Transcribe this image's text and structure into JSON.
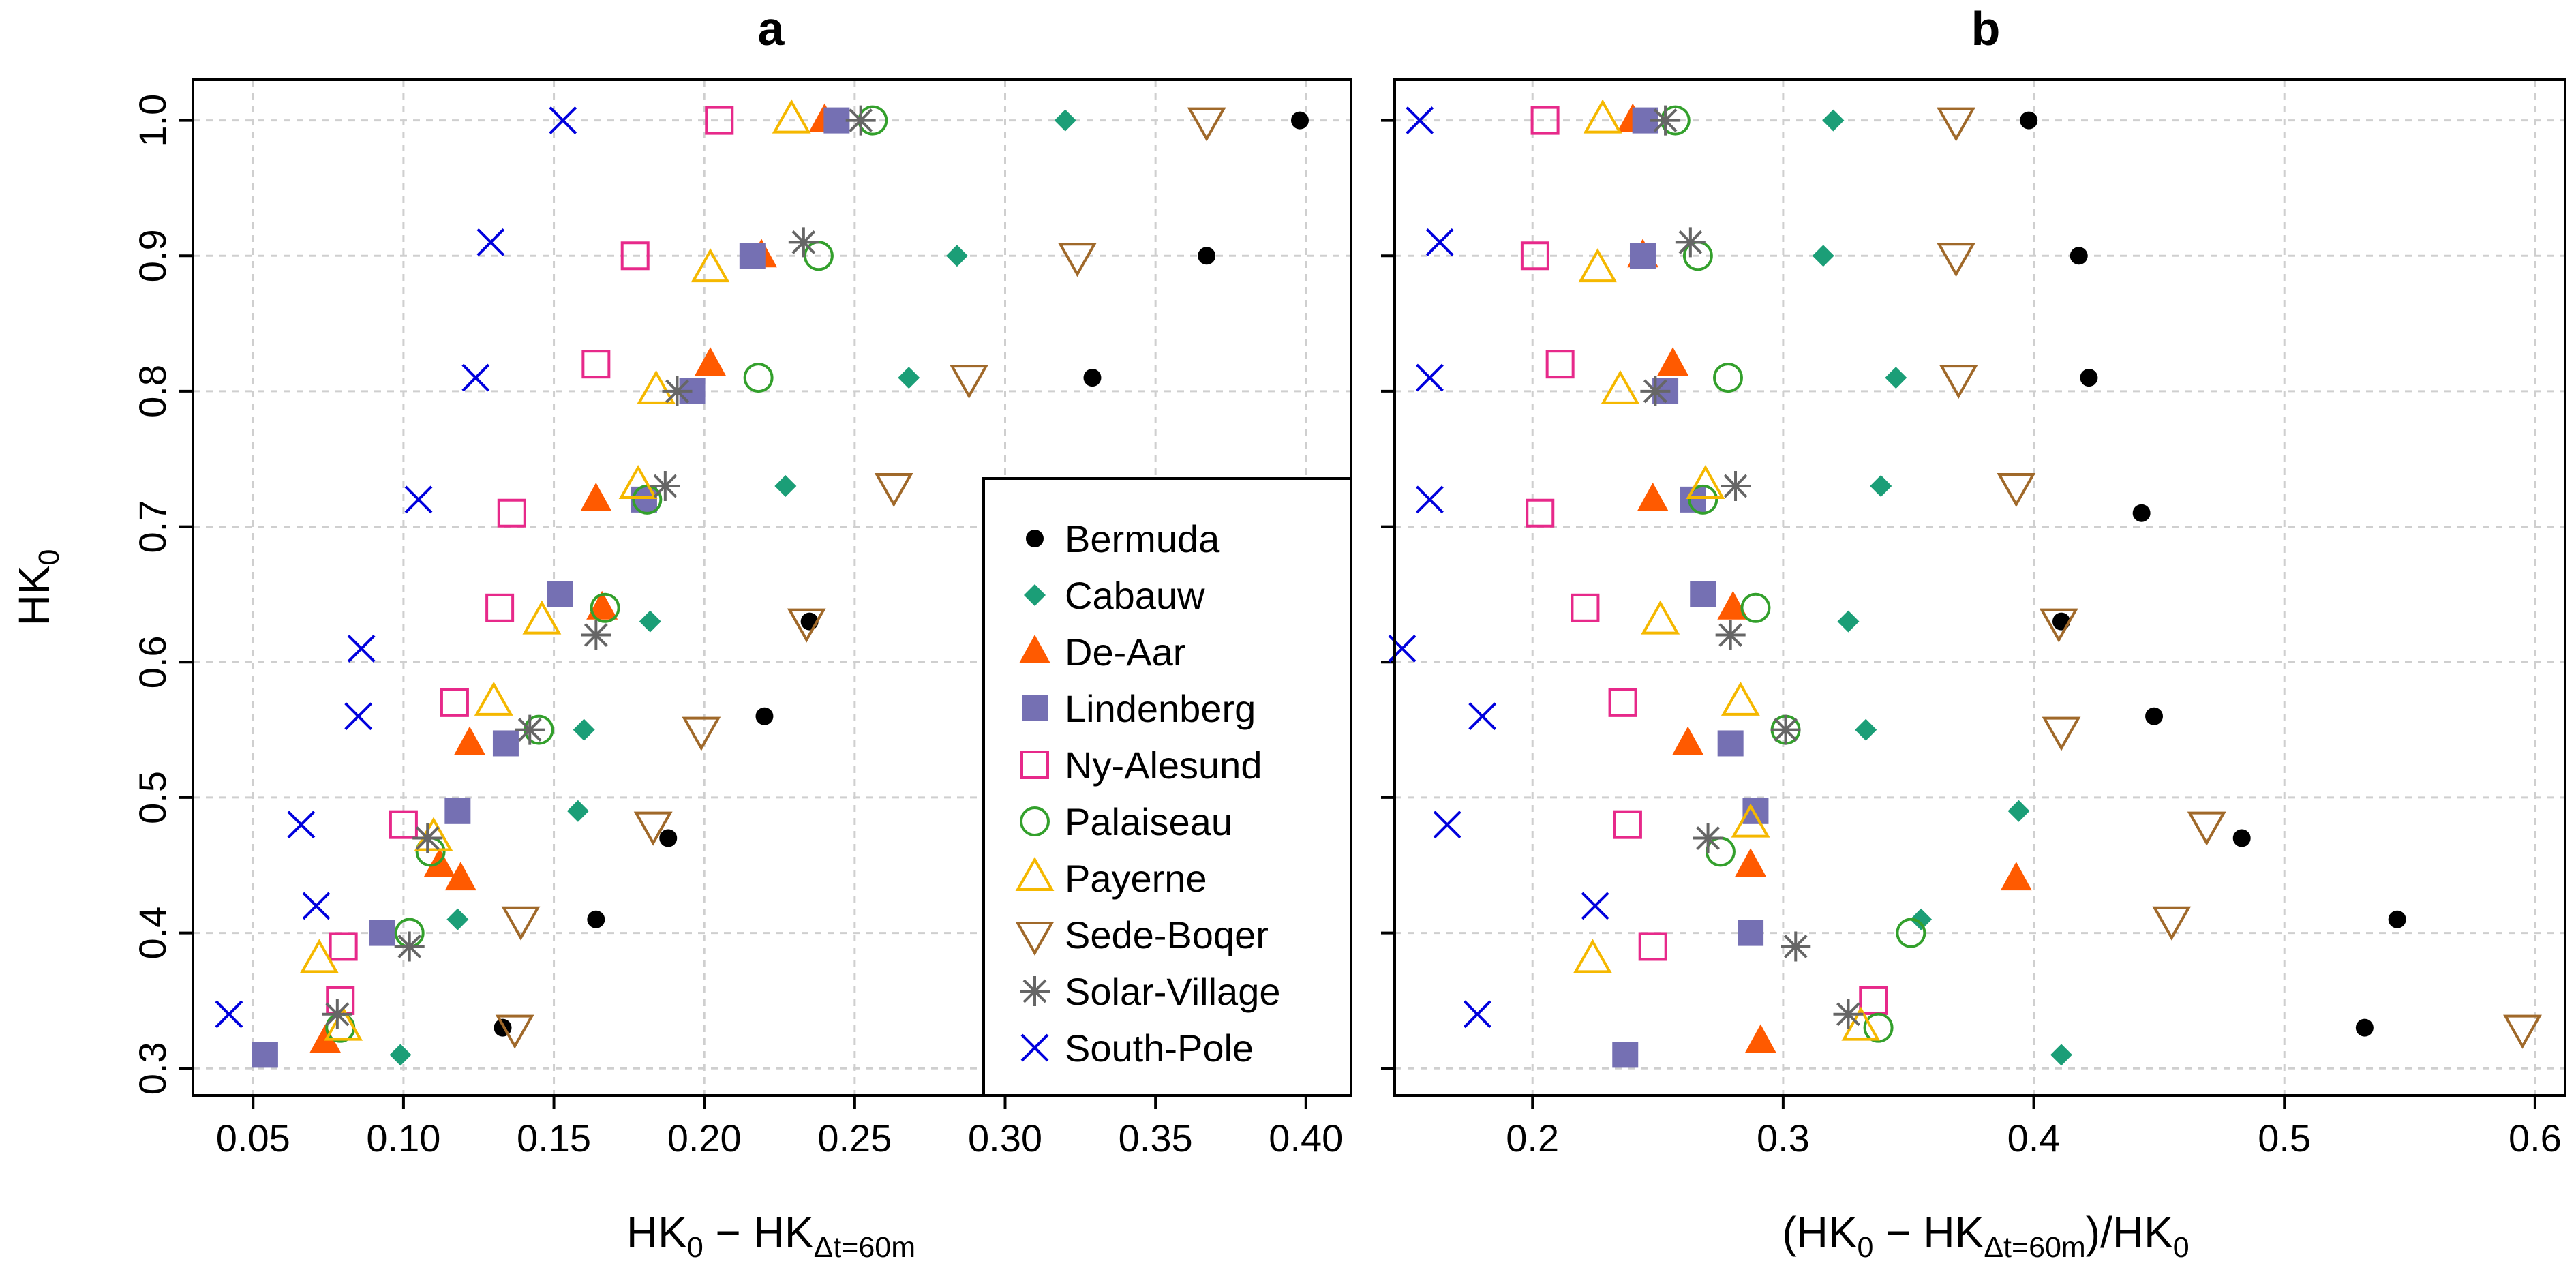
{
  "stations": [
    {
      "name": "Bermuda",
      "color": "#000000",
      "marker": "dot"
    },
    {
      "name": "Cabauw",
      "color": "#1b9e77",
      "marker": "diamond"
    },
    {
      "name": "De-Aar",
      "color": "#ff5a00",
      "marker": "triangle-filled"
    },
    {
      "name": "Lindenberg",
      "color": "#7570b3",
      "marker": "square-filled"
    },
    {
      "name": "Ny-Alesund",
      "color": "#e7298a",
      "marker": "square-open"
    },
    {
      "name": "Palaiseau",
      "color": "#33a02c",
      "marker": "circle-open"
    },
    {
      "name": "Payerne",
      "color": "#f5b800",
      "marker": "triangle-open"
    },
    {
      "name": "Sede-Boqer",
      "color": "#a0692a",
      "marker": "triangle-down-open"
    },
    {
      "name": "Solar-Village",
      "color": "#666666",
      "marker": "asterisk"
    },
    {
      "name": "South-Pole",
      "color": "#0000dd",
      "marker": "cross"
    }
  ],
  "chart_data": [
    {
      "type": "scatter",
      "panel": "a",
      "title": "a",
      "xlabel_main": "HK",
      "xlabel_sub0": "0",
      "xlabel_mid": " − HK",
      "xlabel_sub1": "Δt=60m",
      "ylabel": "HK",
      "ylabel_sub": "0",
      "xlim": [
        0.03,
        0.415
      ],
      "ylim": [
        0.28,
        1.03
      ],
      "xticks": [
        0.05,
        0.1,
        0.15,
        0.2,
        0.25,
        0.3,
        0.35,
        0.4
      ],
      "xtick_labels": [
        "0.05",
        "0.10",
        "0.15",
        "0.20",
        "0.25",
        "0.30",
        "0.35",
        "0.40"
      ],
      "yticks": [
        0.3,
        0.4,
        0.5,
        0.6,
        0.7,
        0.8,
        0.9,
        1.0
      ],
      "ytick_labels": [
        "0.3",
        "0.4",
        "0.5",
        "0.6",
        "0.7",
        "0.8",
        "0.9",
        "1.0"
      ],
      "legend_position": "bottom-right",
      "series": [
        {
          "name": "Bermuda",
          "points": [
            [
              0.398,
              1.0
            ],
            [
              0.367,
              0.9
            ],
            [
              0.329,
              0.81
            ],
            [
              0.235,
              0.63
            ],
            [
              0.22,
              0.56
            ],
            [
              0.188,
              0.47
            ],
            [
              0.164,
              0.41
            ],
            [
              0.133,
              0.33
            ]
          ]
        },
        {
          "name": "Cabauw",
          "points": [
            [
              0.32,
              1.0
            ],
            [
              0.284,
              0.9
            ],
            [
              0.268,
              0.81
            ],
            [
              0.227,
              0.73
            ],
            [
              0.182,
              0.63
            ],
            [
              0.16,
              0.55
            ],
            [
              0.158,
              0.49
            ],
            [
              0.118,
              0.41
            ],
            [
              0.099,
              0.31
            ]
          ]
        },
        {
          "name": "De-Aar",
          "points": [
            [
              0.24,
              1.0
            ],
            [
              0.219,
              0.9
            ],
            [
              0.202,
              0.82
            ],
            [
              0.164,
              0.72
            ],
            [
              0.166,
              0.64
            ],
            [
              0.122,
              0.54
            ],
            [
              0.112,
              0.45
            ],
            [
              0.119,
              0.44
            ],
            [
              0.074,
              0.32
            ]
          ]
        },
        {
          "name": "Lindenberg",
          "points": [
            [
              0.244,
              1.0
            ],
            [
              0.216,
              0.9
            ],
            [
              0.196,
              0.8
            ],
            [
              0.18,
              0.72
            ],
            [
              0.152,
              0.65
            ],
            [
              0.134,
              0.54
            ],
            [
              0.118,
              0.49
            ],
            [
              0.093,
              0.4
            ],
            [
              0.054,
              0.31
            ]
          ]
        },
        {
          "name": "Ny-Alesund",
          "points": [
            [
              0.205,
              1.0
            ],
            [
              0.177,
              0.9
            ],
            [
              0.164,
              0.82
            ],
            [
              0.136,
              0.71
            ],
            [
              0.132,
              0.64
            ],
            [
              0.117,
              0.57
            ],
            [
              0.1,
              0.48
            ],
            [
              0.08,
              0.39
            ],
            [
              0.079,
              0.35
            ]
          ]
        },
        {
          "name": "Palaiseau",
          "points": [
            [
              0.256,
              1.0
            ],
            [
              0.238,
              0.9
            ],
            [
              0.218,
              0.81
            ],
            [
              0.181,
              0.72
            ],
            [
              0.167,
              0.64
            ],
            [
              0.145,
              0.55
            ],
            [
              0.109,
              0.46
            ],
            [
              0.102,
              0.4
            ],
            [
              0.079,
              0.33
            ]
          ]
        },
        {
          "name": "Payerne",
          "points": [
            [
              0.229,
              1.0
            ],
            [
              0.202,
              0.89
            ],
            [
              0.184,
              0.8
            ],
            [
              0.178,
              0.73
            ],
            [
              0.146,
              0.63
            ],
            [
              0.13,
              0.57
            ],
            [
              0.11,
              0.47
            ],
            [
              0.072,
              0.38
            ],
            [
              0.08,
              0.33
            ]
          ]
        },
        {
          "name": "Sede-Boqer",
          "points": [
            [
              0.367,
              1.0
            ],
            [
              0.324,
              0.9
            ],
            [
              0.288,
              0.81
            ],
            [
              0.263,
              0.73
            ],
            [
              0.234,
              0.63
            ],
            [
              0.199,
              0.55
            ],
            [
              0.183,
              0.48
            ],
            [
              0.139,
              0.41
            ],
            [
              0.137,
              0.33
            ]
          ]
        },
        {
          "name": "Solar-Village",
          "points": [
            [
              0.252,
              1.0
            ],
            [
              0.233,
              0.91
            ],
            [
              0.191,
              0.8
            ],
            [
              0.187,
              0.73
            ],
            [
              0.164,
              0.62
            ],
            [
              0.142,
              0.55
            ],
            [
              0.108,
              0.47
            ],
            [
              0.102,
              0.39
            ],
            [
              0.078,
              0.34
            ]
          ]
        },
        {
          "name": "South-Pole",
          "points": [
            [
              0.153,
              1.0
            ],
            [
              0.129,
              0.91
            ],
            [
              0.124,
              0.81
            ],
            [
              0.105,
              0.72
            ],
            [
              0.086,
              0.61
            ],
            [
              0.085,
              0.56
            ],
            [
              0.066,
              0.48
            ],
            [
              0.071,
              0.42
            ],
            [
              0.042,
              0.34
            ]
          ]
        }
      ]
    },
    {
      "type": "scatter",
      "panel": "b",
      "title": "b",
      "xlabel_main": "(HK",
      "xlabel_sub0": "0",
      "xlabel_mid": " − HK",
      "xlabel_sub1": "Δt=60m",
      "xlabel_tail": ")/HK",
      "xlabel_sub2": "0",
      "xlim": [
        0.145,
        0.612
      ],
      "ylim": [
        0.28,
        1.03
      ],
      "xticks": [
        0.2,
        0.3,
        0.4,
        0.5,
        0.6
      ],
      "xtick_labels": [
        "0.2",
        "0.3",
        "0.4",
        "0.5",
        "0.6"
      ],
      "yticks": [
        0.3,
        0.4,
        0.5,
        0.6,
        0.7,
        0.8,
        0.9,
        1.0
      ],
      "series": [
        {
          "name": "Bermuda",
          "points": [
            [
              0.398,
              1.0
            ],
            [
              0.418,
              0.9
            ],
            [
              0.422,
              0.81
            ],
            [
              0.443,
              0.71
            ],
            [
              0.411,
              0.63
            ],
            [
              0.448,
              0.56
            ],
            [
              0.483,
              0.47
            ],
            [
              0.545,
              0.41
            ],
            [
              0.532,
              0.33
            ]
          ]
        },
        {
          "name": "Cabauw",
          "points": [
            [
              0.32,
              1.0
            ],
            [
              0.316,
              0.9
            ],
            [
              0.345,
              0.81
            ],
            [
              0.339,
              0.73
            ],
            [
              0.326,
              0.63
            ],
            [
              0.333,
              0.55
            ],
            [
              0.394,
              0.49
            ],
            [
              0.355,
              0.41
            ],
            [
              0.411,
              0.31
            ]
          ]
        },
        {
          "name": "De-Aar",
          "points": [
            [
              0.24,
              1.0
            ],
            [
              0.244,
              0.9
            ],
            [
              0.256,
              0.82
            ],
            [
              0.248,
              0.72
            ],
            [
              0.28,
              0.64
            ],
            [
              0.262,
              0.54
            ],
            [
              0.287,
              0.45
            ],
            [
              0.393,
              0.44
            ],
            [
              0.291,
              0.32
            ]
          ]
        },
        {
          "name": "Lindenberg",
          "points": [
            [
              0.245,
              1.0
            ],
            [
              0.244,
              0.9
            ],
            [
              0.253,
              0.8
            ],
            [
              0.264,
              0.72
            ],
            [
              0.268,
              0.65
            ],
            [
              0.279,
              0.54
            ],
            [
              0.289,
              0.49
            ],
            [
              0.287,
              0.4
            ],
            [
              0.237,
              0.31
            ]
          ]
        },
        {
          "name": "Ny-Alesund",
          "points": [
            [
              0.205,
              1.0
            ],
            [
              0.201,
              0.9
            ],
            [
              0.211,
              0.82
            ],
            [
              0.203,
              0.71
            ],
            [
              0.221,
              0.64
            ],
            [
              0.236,
              0.57
            ],
            [
              0.238,
              0.48
            ],
            [
              0.248,
              0.39
            ],
            [
              0.336,
              0.35
            ]
          ]
        },
        {
          "name": "Palaiseau",
          "points": [
            [
              0.257,
              1.0
            ],
            [
              0.266,
              0.9
            ],
            [
              0.278,
              0.81
            ],
            [
              0.268,
              0.72
            ],
            [
              0.289,
              0.64
            ],
            [
              0.301,
              0.55
            ],
            [
              0.275,
              0.46
            ],
            [
              0.351,
              0.4
            ],
            [
              0.338,
              0.33
            ]
          ]
        },
        {
          "name": "Payerne",
          "points": [
            [
              0.228,
              1.0
            ],
            [
              0.226,
              0.89
            ],
            [
              0.235,
              0.8
            ],
            [
              0.269,
              0.73
            ],
            [
              0.251,
              0.63
            ],
            [
              0.283,
              0.57
            ],
            [
              0.287,
              0.48
            ],
            [
              0.224,
              0.38
            ],
            [
              0.331,
              0.33
            ]
          ]
        },
        {
          "name": "Sede-Boqer",
          "points": [
            [
              0.369,
              1.0
            ],
            [
              0.369,
              0.9
            ],
            [
              0.37,
              0.81
            ],
            [
              0.393,
              0.73
            ],
            [
              0.41,
              0.63
            ],
            [
              0.411,
              0.55
            ],
            [
              0.469,
              0.48
            ],
            [
              0.455,
              0.41
            ],
            [
              0.595,
              0.33
            ]
          ]
        },
        {
          "name": "Solar-Village",
          "points": [
            [
              0.253,
              1.0
            ],
            [
              0.263,
              0.91
            ],
            [
              0.249,
              0.8
            ],
            [
              0.281,
              0.73
            ],
            [
              0.279,
              0.62
            ],
            [
              0.301,
              0.55
            ],
            [
              0.27,
              0.47
            ],
            [
              0.305,
              0.39
            ],
            [
              0.326,
              0.34
            ]
          ]
        },
        {
          "name": "South-Pole",
          "points": [
            [
              0.155,
              1.0
            ],
            [
              0.163,
              0.91
            ],
            [
              0.159,
              0.81
            ],
            [
              0.159,
              0.72
            ],
            [
              0.148,
              0.61
            ],
            [
              0.18,
              0.56
            ],
            [
              0.166,
              0.48
            ],
            [
              0.225,
              0.42
            ],
            [
              0.178,
              0.34
            ]
          ]
        }
      ]
    }
  ]
}
